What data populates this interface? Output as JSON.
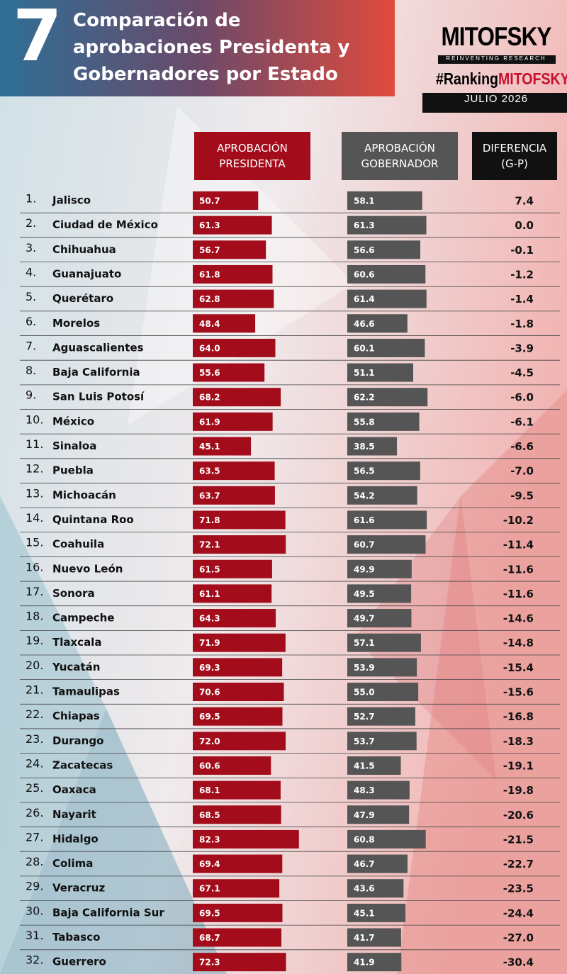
{
  "chart_data": {
    "type": "bar",
    "number": "7",
    "title": "Comparación de aprobaciones Presidenta y Gobernadores por Estado",
    "brand": "MITOFSKY",
    "tagline": "REINVENTING RESEARCH",
    "hashtag": [
      "#Ranking",
      "MITOFSKY"
    ],
    "subtitle": "JULIO 2026",
    "ranks": [
      "1.",
      "2.",
      "3.",
      "4.",
      "5.",
      "6.",
      "7.",
      "8.",
      "9.",
      "10.",
      "11.",
      "12.",
      "13.",
      "14.",
      "15.",
      "16.",
      "17.",
      "18.",
      "19.",
      "20.",
      "21.",
      "22.",
      "23.",
      "24.",
      "25.",
      "26.",
      "27.",
      "28.",
      "29.",
      "30.",
      "31.",
      "32."
    ],
    "categories": [
      "Jalisco",
      "Ciudad de México",
      "Chihuahua",
      "Guanajuato",
      "Querétaro",
      "Morelos",
      "Aguascalientes",
      "Baja California",
      "San Luis Potosí",
      "México",
      "Sinaloa",
      "Puebla",
      "Michoacán",
      "Quintana Roo",
      "Coahuila",
      "Nuevo León",
      "Sonora",
      "Campeche",
      "Tlaxcala",
      "Yucatán",
      "Tamaulipas",
      "Chiapas",
      "Durango",
      "Zacatecas",
      "Oaxaca",
      "Nayarit",
      "Hidalgo",
      "Colima",
      "Veracruz",
      "Baja California Sur",
      "Tabasco",
      "Guerrero"
    ],
    "xlim": [
      0,
      100
    ],
    "series": [
      {
        "name": "APROBACIÓN PRESIDENTA",
        "color": "#a30d1b",
        "values": [
          50.7,
          61.3,
          56.7,
          61.8,
          62.8,
          48.4,
          64.0,
          55.6,
          68.2,
          61.9,
          45.1,
          63.5,
          63.7,
          71.8,
          72.1,
          61.5,
          61.1,
          64.3,
          71.9,
          69.3,
          70.6,
          69.5,
          72.0,
          60.6,
          68.1,
          68.5,
          82.3,
          69.4,
          67.1,
          69.5,
          68.7,
          72.3
        ],
        "value_labels": [
          "50.7",
          "61.3",
          "56.7",
          "61.8",
          "62.8",
          "48.4",
          "64.0",
          "55.6",
          "68.2",
          "61.9",
          "45.1",
          "63.5",
          "63.7",
          "71.8",
          "72.1",
          "61.5",
          "61.1",
          "64.3",
          "71.9",
          "69.3",
          "70.6",
          "69.5",
          "72.0",
          "60.6",
          "68.1",
          "68.5",
          "82.3",
          "69.4",
          "67.1",
          "69.5",
          "68.7",
          "72.3"
        ]
      },
      {
        "name": "APROBACIÓN GOBERNADOR",
        "color": "#555555",
        "values": [
          58.1,
          61.3,
          56.6,
          60.6,
          61.4,
          46.6,
          60.1,
          51.1,
          62.2,
          55.8,
          38.5,
          56.5,
          54.2,
          61.6,
          60.7,
          49.9,
          49.5,
          49.7,
          57.1,
          53.9,
          55.0,
          52.7,
          53.7,
          41.5,
          48.3,
          47.9,
          60.8,
          46.7,
          43.6,
          45.1,
          41.7,
          41.9
        ],
        "value_labels": [
          "58.1",
          "61.3",
          "56.6",
          "60.6",
          "61.4",
          "46.6",
          "60.1",
          "51.1",
          "62.2",
          "55.8",
          "38.5",
          "56.5",
          "54.2",
          "61.6",
          "60.7",
          "49.9",
          "49.5",
          "49.7",
          "57.1",
          "53.9",
          "55.0",
          "52.7",
          "53.7",
          "41.5",
          "48.3",
          "47.9",
          "60.8",
          "46.7",
          "43.6",
          "45.1",
          "41.7",
          "41.9"
        ]
      },
      {
        "name": "DIFERENCIA (G-P)",
        "color": "#111111",
        "values": [
          7.4,
          0.0,
          -0.1,
          -1.2,
          -1.4,
          -1.8,
          -3.9,
          -4.5,
          -6.0,
          -6.1,
          -6.6,
          -7.0,
          -9.5,
          -10.2,
          -11.4,
          -11.6,
          -11.6,
          -14.6,
          -14.8,
          -15.4,
          -15.6,
          -16.8,
          -18.3,
          -19.1,
          -19.8,
          -20.6,
          -21.5,
          -22.7,
          -23.5,
          -24.4,
          -27.0,
          -30.4
        ],
        "value_labels": [
          "7.4",
          "0.0",
          "-0.1",
          "-1.2",
          "-1.4",
          "-1.8",
          "-3.9",
          "-4.5",
          "-6.0",
          "-6.1",
          "-6.6",
          "-7.0",
          "-9.5",
          "-10.2",
          "-11.4",
          "-11.6",
          "-11.6",
          "-14.6",
          "-14.8",
          "-15.4",
          "-15.6",
          "-16.8",
          "-18.3",
          "-19.1",
          "-19.8",
          "-20.6",
          "-21.5",
          "-22.7",
          "-23.5",
          "-24.4",
          "-27.0",
          "-30.4"
        ]
      }
    ]
  }
}
